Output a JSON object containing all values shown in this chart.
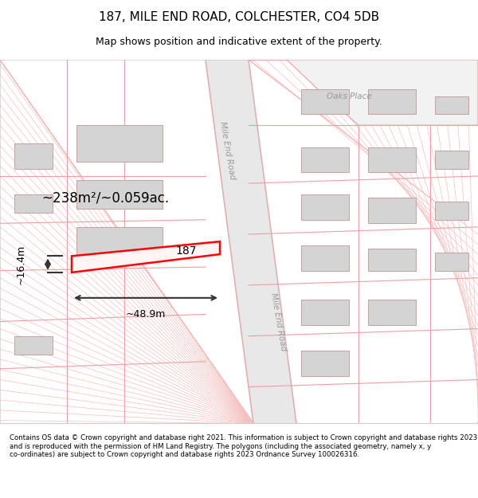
{
  "title": "187, MILE END ROAD, COLCHESTER, CO4 5DB",
  "subtitle": "Map shows position and indicative extent of the property.",
  "footer": "Contains OS data © Crown copyright and database right 2021. This information is subject to Crown copyright and database rights 2023 and is reproduced with the permission of HM Land Registry. The polygons (including the associated geometry, namely x, y co-ordinates) are subject to Crown copyright and database rights 2023 Ordnance Survey 100026316.",
  "map_bg": "#ffffff",
  "road_color": "#f5c6c6",
  "road_fill": "#f0d0d0",
  "building_fill": "#d8d8d8",
  "building_edge": "#e8a8a8",
  "hatch_line_color": "#f0c0c0",
  "highlight_color": "#ff0000",
  "highlight_fill": "#fff0f0",
  "road_stripe_color": "#f8e0e0",
  "area_label": "~238m²/~0.059ac.",
  "width_label": "~48.9m",
  "height_label": "~16.4m",
  "property_number": "187",
  "road_name_1": "Mile End Road",
  "road_name_2": "Mile End Road",
  "street_name": "Oaks Place"
}
